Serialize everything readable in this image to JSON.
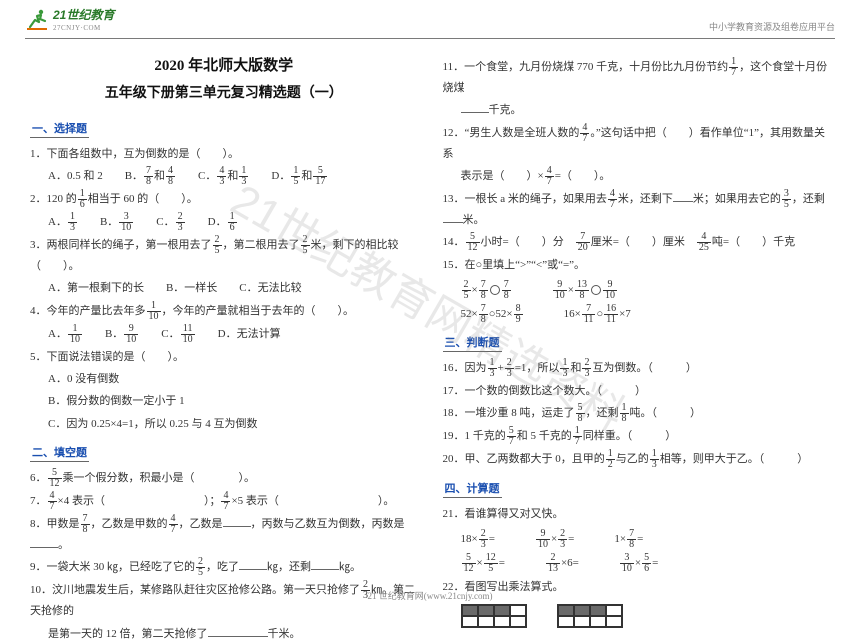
{
  "logo_text": "21世纪教育",
  "logo_sub": "27CNJY·COM",
  "top_right": "中小学教育资源及组卷应用平台",
  "title_line1": "2020 年北师大版数学",
  "title_line2": "五年级下册第三单元复习精选题（一）",
  "sections": {
    "s1": "一、选择题",
    "s2": "二、填空题",
    "s3": "三、判断题",
    "s4": "四、计算题"
  },
  "left": {
    "q1": "1．下面各组数中，互为倒数的是（　　）。",
    "q1opts": {
      "A": "A．0.5 和 2",
      "B_pre": "B．",
      "B_and": "和",
      "C_pre": "C．",
      "C_and": "和",
      "D_pre": "D．",
      "D_and": "和"
    },
    "q2_a": "2．120 的",
    "q2_b": "相当于 60 的（　　）。",
    "q2opts": {
      "A": "A．",
      "B": "B．",
      "C": "C．",
      "D": "D．"
    },
    "q3_a": "3．两根同样长的绳子，第一根用去了",
    "q3_b": "，第二根用去了",
    "q3_c": "米，剩下的相比较（　　）。",
    "q3opts": {
      "A": "A．第一根剩下的长",
      "B": "B．一样长",
      "C": "C．无法比较"
    },
    "q4_a": "4．今年的产量比去年多",
    "q4_b": "，今年的产量就相当于去年的（　　）。",
    "q4opts": {
      "A": "A．",
      "B": "B．",
      "C": "C．",
      "D": "D．无法计算"
    },
    "q5": "5．下面说法错误的是（　　）。",
    "q5a": "A．0 没有倒数",
    "q5b": "B．假分数的倒数一定小于 1",
    "q5c": "C．因为 0.25×4=1，所以 0.25 与 4 互为倒数",
    "q6_a": "6．",
    "q6_b": "乘一个假分数，积最小是（　　　　）。",
    "q7_a": "7．",
    "q7_b": "×4 表示（　　　　　　　　　）；",
    "q7_c": "×5 表示（　　　　　　　　　）。",
    "q8_a": "8．甲数是",
    "q8_b": "，乙数是甲数的",
    "q8_c": "，乙数是",
    "q8_d": "，丙数与乙数互为倒数，丙数是",
    "q8_e": "。",
    "q9_a": "9．一袋大米 30 ㎏，已经吃了它的",
    "q9_b": "，吃了",
    "q9_c": "㎏，还剩",
    "q9_d": "㎏。",
    "q10_a": "10．汶川地震发生后，某修路队赶往灾区抢修公路。第一天只抢修了",
    "q10_b": "㎞。第二天抢修的",
    "q10_c": "是第一天的 12 倍，第二天抢修了",
    "q10_d": "千米。"
  },
  "right": {
    "q11_a": "11．一个食堂，九月份烧煤 770 千克，十月份比九月份节约",
    "q11_b": "，这个食堂十月份烧煤",
    "q11_c": "千克。",
    "q12_a": "12．“男生人数是全班人数的",
    "q12_b": "。”这句话中把（　　）看作单位“1”，其用数量关系",
    "q12_c": "表示是（　　）×",
    "q12_d": "=（　　）。",
    "q13_a": "13．一根长 a 米的绳子，如果用去",
    "q13_b": "米，还剩下",
    "q13_c": "米；如果用去它的",
    "q13_d": "，还剩",
    "q13_e": "米。",
    "q14_a": "14．",
    "q14_b": "小时=（　　）分　",
    "q14_c": "厘米=（　　）厘米　",
    "q14_d": "吨=（　　）千克",
    "q15": "15．在○里填上“>”“<”或“=”。",
    "eqrow1_a": "×",
    "eqrow1_b": "×",
    "eqrow1_c": "×",
    "eqrow2_a": "52×",
    "eqrow2_b": "○52×",
    "eqrow2_c": "16×",
    "eqrow2_d": "○",
    "eqrow2_e": "×7",
    "q16_a": "16．因为",
    "q16_b": "+",
    "q16_c": "=1，所以",
    "q16_d": "和",
    "q16_e": "互为倒数。（　　　）",
    "q17": "17．一个数的倒数比这个数大。（　　　）",
    "q18_a": "18．一堆沙重 8 吨，运走了",
    "q18_b": "，还剩",
    "q18_c": "吨。（　　　）",
    "q19_a": "19．1 千克的",
    "q19_b": "和 5 千克的",
    "q19_c": "同样重。（　　　）",
    "q20_a": "20．甲、乙两数都大于 0，且甲的",
    "q20_b": "与乙的",
    "q20_c": "相等，则甲大于乙。（　　　）",
    "q21": "21．看谁算得又对又快。",
    "calc_r1": {
      "a": "18×",
      "b": "=",
      "c": "×",
      "d": "=",
      "e": "1×",
      "f": "="
    },
    "calc_r2": {
      "a": "×",
      "b": "=",
      "c": "×6=",
      "d": "×",
      "e": "="
    },
    "q22": "22．看图写出乘法算式。"
  },
  "fractions": {
    "7_8": {
      "n": "7",
      "d": "8"
    },
    "4_8": {
      "n": "4",
      "d": "8"
    },
    "4_3": {
      "n": "4",
      "d": "3"
    },
    "1_3": {
      "n": "1",
      "d": "3"
    },
    "1_5": {
      "n": "1",
      "d": "5"
    },
    "5_17": {
      "n": "5",
      "d": "17"
    },
    "1_6": {
      "n": "1",
      "d": "6"
    },
    "3_10": {
      "n": "3",
      "d": "10"
    },
    "2_3": {
      "n": "2",
      "d": "3"
    },
    "2_5": {
      "n": "2",
      "d": "5"
    },
    "1_10": {
      "n": "1",
      "d": "10"
    },
    "9_10": {
      "n": "9",
      "d": "10"
    },
    "11_10": {
      "n": "11",
      "d": "10"
    },
    "5_12": {
      "n": "5",
      "d": "12"
    },
    "4_7": {
      "n": "4",
      "d": "7"
    },
    "7_20": {
      "n": "7",
      "d": "20"
    },
    "4_25": {
      "n": "4",
      "d": "25"
    },
    "3_5": {
      "n": "3",
      "d": "5"
    },
    "13_8": {
      "n": "13",
      "d": "8"
    },
    "7_11": {
      "n": "7",
      "d": "11"
    },
    "8_9": {
      "n": "8",
      "d": "9"
    },
    "16_11": {
      "n": "16",
      "d": "11"
    },
    "1_2": {
      "n": "1",
      "d": "2"
    },
    "5_8": {
      "n": "5",
      "d": "8"
    },
    "1_8": {
      "n": "1",
      "d": "8"
    },
    "5_7": {
      "n": "5",
      "d": "7"
    },
    "1_7": {
      "n": "1",
      "d": "7"
    },
    "2_13": {
      "n": "2",
      "d": "13"
    },
    "12_5": {
      "n": "12",
      "d": "5"
    },
    "5_6": {
      "n": "5",
      "d": "6"
    }
  },
  "shapes": {
    "grid1": [
      1,
      1,
      1,
      0,
      0,
      0,
      0,
      0
    ],
    "grid2": [
      1,
      1,
      1,
      0,
      0,
      0,
      0,
      0
    ]
  },
  "footer": "21 世纪教育网(www.21cnjy.com)",
  "watermark": "21世纪教育网精选资料"
}
